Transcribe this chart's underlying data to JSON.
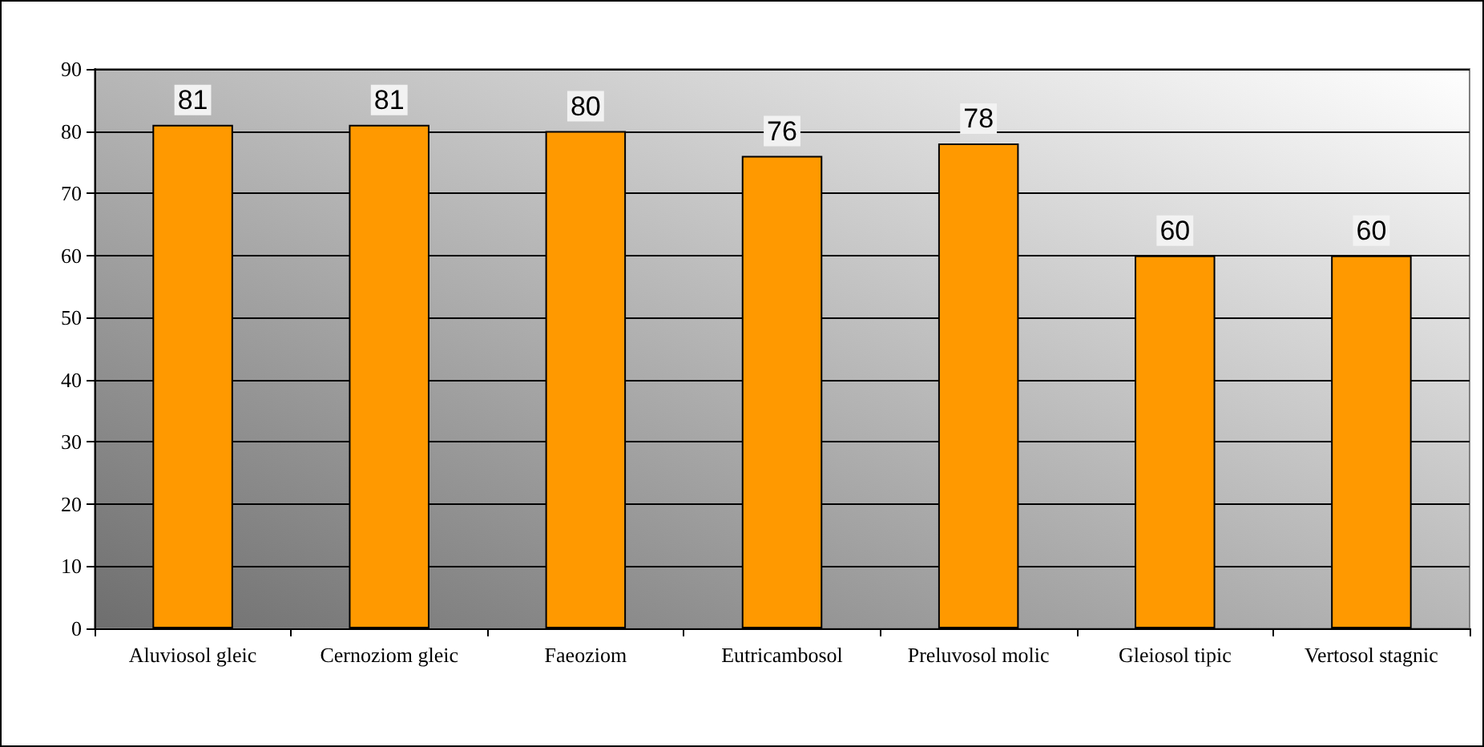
{
  "chart_data": {
    "type": "bar",
    "categories": [
      "Aluviosol gleic",
      "Cernoziom gleic",
      "Faeoziom",
      "Eutricambosol",
      "Preluvosol molic",
      "Gleiosol tipic",
      "Vertosol stagnic"
    ],
    "values": [
      81,
      81,
      80,
      76,
      78,
      60,
      60
    ],
    "color": "#ff9900",
    "ylim": [
      0,
      90
    ],
    "yticks": [
      0,
      10,
      20,
      30,
      40,
      50,
      60,
      70,
      80,
      90
    ],
    "grid": "y",
    "data_labels": true
  }
}
